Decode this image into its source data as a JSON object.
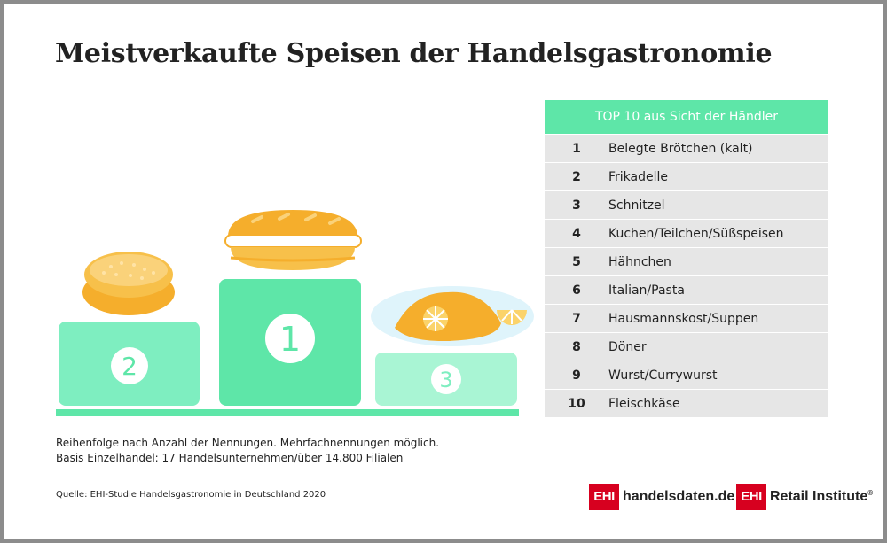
{
  "title": "Meistverkaufte Speisen der Handelsgastronomie",
  "podium": {
    "first": "1",
    "second": "2",
    "third": "3"
  },
  "table": {
    "header": "TOP 10 aus Sicht der Händler",
    "rows": [
      {
        "rank": "1",
        "item": "Belegte Brötchen (kalt)"
      },
      {
        "rank": "2",
        "item": "Frikadelle"
      },
      {
        "rank": "3",
        "item": "Schnitzel"
      },
      {
        "rank": "4",
        "item": "Kuchen/Teilchen/Süßspeisen"
      },
      {
        "rank": "5",
        "item": "Hähnchen"
      },
      {
        "rank": "6",
        "item": "Italian/Pasta"
      },
      {
        "rank": "7",
        "item": "Hausmannskost/Suppen"
      },
      {
        "rank": "8",
        "item": "Döner"
      },
      {
        "rank": "9",
        "item": "Wurst/Currywurst"
      },
      {
        "rank": "10",
        "item": "Fleischkäse"
      }
    ]
  },
  "notes": {
    "line1": "Reihenfolge nach Anzahl der Nennungen. Mehrfachnennungen möglich.",
    "line2": "Basis Einzelhandel: 17 Handelsunternehmen/über 14.800 Filialen"
  },
  "source": "Quelle: EHI-Studie Handelsgastronomie in Deutschland 2020",
  "logos": {
    "left_box": "EHI",
    "left_text": "handelsdaten.de",
    "right_box": "EHI",
    "right_text": "Retail Institute",
    "right_mark": "®"
  },
  "colors": {
    "accent_green": "#5ee6a8",
    "podium_light": "#a9f5d4",
    "food_orange": "#f5ae2c",
    "logo_red": "#d7001f"
  }
}
